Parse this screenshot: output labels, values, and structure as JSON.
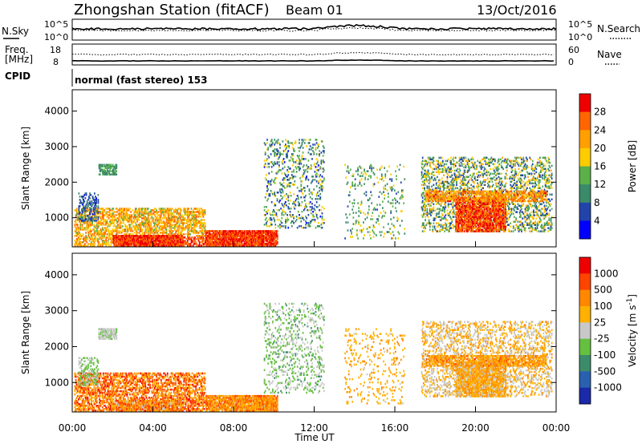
{
  "header": {
    "title": "Zhongshan Station (fitACF)",
    "beam": "Beam 01",
    "date": "13/Oct/2016"
  },
  "noise_panel": {
    "left_label": "N.Sky",
    "right_label": "N.Search",
    "tick_top": "10^5",
    "tick_bottom": "10^0"
  },
  "freq_panel": {
    "left_label_1": "Freq.",
    "left_label_2": "[MHz]",
    "right_label": "Nave",
    "left_tick_top": "18",
    "left_tick_bottom": "8",
    "right_tick_top": "60",
    "right_tick_bottom": "0"
  },
  "cpid": {
    "label": "CPID",
    "value": "normal (fast stereo) 153"
  },
  "chart_data": [
    {
      "type": "heatmap",
      "quantity": "Power",
      "ylabel": "Slant Range [km]",
      "xlabel": "Time UT",
      "ylim": [
        180,
        4600
      ],
      "yticks": [
        "1000",
        "2000",
        "3000",
        "4000"
      ],
      "xticks": [
        "00:00",
        "04:00",
        "08:00",
        "12:00",
        "16:00",
        "20:00",
        "00:00"
      ],
      "colorbar": {
        "label": "Power [dB]",
        "ticks": [
          "4",
          "8",
          "12",
          "16",
          "20",
          "24",
          "28"
        ],
        "colors": [
          "#0000ff",
          "#2244aa",
          "#3b8a6a",
          "#5bb04a",
          "#ffcc00",
          "#ffa000",
          "#ff6600",
          "#ee0000"
        ]
      }
    },
    {
      "type": "heatmap",
      "quantity": "Velocity",
      "ylabel": "Slant Range [km]",
      "xlabel": "Time UT",
      "ylim": [
        180,
        4600
      ],
      "yticks": [
        "1000",
        "2000",
        "3000",
        "4000"
      ],
      "xticks": [
        "00:00",
        "04:00",
        "08:00",
        "12:00",
        "16:00",
        "20:00",
        "00:00"
      ],
      "colorbar": {
        "label": "Velocity [m s",
        "label_sup": "-1",
        "label_end": "]",
        "ticks": [
          "1000",
          "500",
          "100",
          "25",
          "-25",
          "-100",
          "-500",
          "-1000"
        ],
        "colors": [
          "#1a2aa8",
          "#2a60b0",
          "#3c8c6a",
          "#66c040",
          "#c8c8c8",
          "#ffb000",
          "#ff8800",
          "#ff4400",
          "#ee0000"
        ]
      }
    }
  ]
}
